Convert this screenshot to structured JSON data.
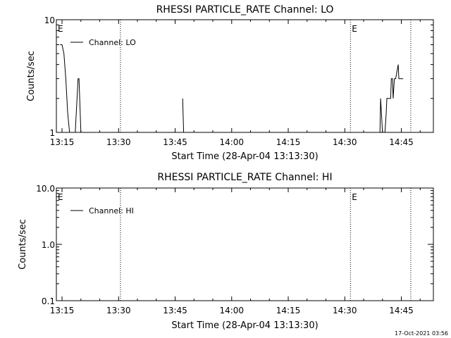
{
  "footer_timestamp": "17-Oct-2021 03:56",
  "chart_data": [
    {
      "type": "line",
      "title": "RHESSI PARTICLE_RATE Channel: LO",
      "xlabel": "Start Time (28-Apr-04 13:13:30)",
      "ylabel": "Counts/sec",
      "yscale": "log",
      "ylim": [
        1,
        10
      ],
      "y_ticks": [
        1,
        10
      ],
      "y_tick_labels": [
        "1",
        "10"
      ],
      "xlim": [
        "13:13:30",
        "14:53:30"
      ],
      "x_ticks": [
        "13:15",
        "13:30",
        "13:45",
        "14:00",
        "14:15",
        "14:30",
        "14:45"
      ],
      "legend": "top-left",
      "grid": false,
      "markers": [
        {
          "label": "E",
          "time": "13:13:30"
        },
        {
          "label": "E",
          "time": "14:31:30"
        }
      ],
      "dotted_lines": [
        "13:30:30",
        "14:31:30",
        "14:47:30"
      ],
      "series": [
        {
          "name": "Channel: LO",
          "segments": [
            [
              [
                "13:14:30",
                6
              ],
              [
                "13:15:00",
                6
              ],
              [
                "13:15:30",
                5
              ],
              [
                "13:16:00",
                3
              ],
              [
                "13:16:30",
                1.5
              ],
              [
                "13:17:00",
                1
              ]
            ],
            [
              [
                "13:18:30",
                1
              ],
              [
                "13:19:15",
                3
              ],
              [
                "13:19:30",
                3
              ],
              [
                "13:20:00",
                1
              ]
            ],
            [
              [
                "13:47:00",
                2
              ],
              [
                "13:47:15",
                1
              ]
            ],
            [
              [
                "14:39:20",
                1
              ],
              [
                "14:39:30",
                2
              ],
              [
                "14:40:00",
                1
              ],
              [
                "14:40:40",
                1
              ],
              [
                "14:41:00",
                1.5
              ],
              [
                "14:41:10",
                2
              ],
              [
                "14:42:10",
                2
              ],
              [
                "14:42:20",
                3
              ],
              [
                "14:42:40",
                3
              ],
              [
                "14:42:50",
                2
              ],
              [
                "14:43:10",
                3
              ],
              [
                "14:43:30",
                3
              ],
              [
                "14:44:10",
                4
              ],
              [
                "14:44:20",
                3
              ],
              [
                "14:45:30",
                3
              ]
            ]
          ]
        }
      ]
    },
    {
      "type": "line",
      "title": "RHESSI PARTICLE_RATE Channel: HI",
      "xlabel": "Start Time (28-Apr-04 13:13:30)",
      "ylabel": "Counts/sec",
      "yscale": "log",
      "ylim": [
        0.1,
        10
      ],
      "y_ticks": [
        0.1,
        1,
        10
      ],
      "y_tick_labels": [
        "0.1",
        "1.0",
        "10.0"
      ],
      "xlim": [
        "13:13:30",
        "14:53:30"
      ],
      "x_ticks": [
        "13:15",
        "13:30",
        "13:45",
        "14:00",
        "14:15",
        "14:30",
        "14:45"
      ],
      "legend": "top-left",
      "grid": false,
      "markers": [
        {
          "label": "E",
          "time": "13:13:30"
        },
        {
          "label": "E",
          "time": "14:31:30"
        }
      ],
      "dotted_lines": [
        "13:30:30",
        "14:31:30",
        "14:47:30"
      ],
      "series": [
        {
          "name": "Channel: HI",
          "segments": []
        }
      ]
    }
  ]
}
